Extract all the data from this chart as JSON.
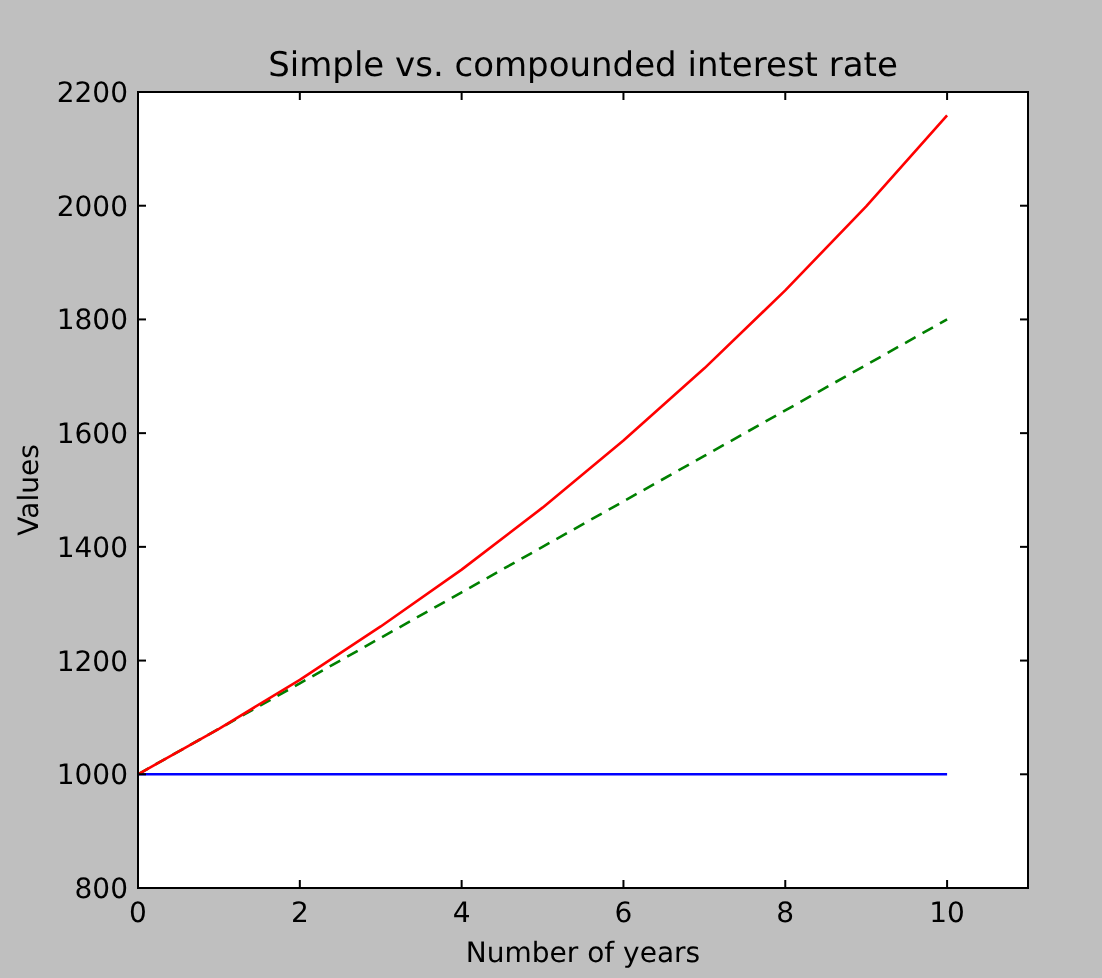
{
  "chart_data": {
    "type": "line",
    "title": "Simple vs. compounded interest rate",
    "xlabel": "Number of years",
    "ylabel": "Values",
    "x": [
      0,
      1,
      2,
      3,
      4,
      5,
      6,
      7,
      8,
      9,
      10
    ],
    "series": [
      {
        "color": "#0000ff",
        "values": [
          1000,
          1000,
          1000,
          1000,
          1000,
          1000,
          1000,
          1000,
          1000,
          1000,
          1000
        ]
      },
      {
        "color": "#008000",
        "line_style": "dashed",
        "values": [
          1000,
          1080,
          1160,
          1240,
          1320,
          1400,
          1480,
          1560,
          1640,
          1720,
          1800
        ]
      },
      {
        "color": "#ff0000",
        "values": [
          1000,
          1080,
          1166,
          1260,
          1360,
          1469,
          1587,
          1714,
          1851,
          1999,
          2159
        ]
      }
    ],
    "xlim": [
      0,
      11
    ],
    "xticks": [
      0,
      2,
      4,
      6,
      8,
      10
    ],
    "ylim": [
      800,
      2200
    ],
    "yticks": [
      800,
      1000,
      1200,
      1400,
      1600,
      1800,
      2000,
      2200
    ],
    "grid": false,
    "line_style": "solid"
  }
}
